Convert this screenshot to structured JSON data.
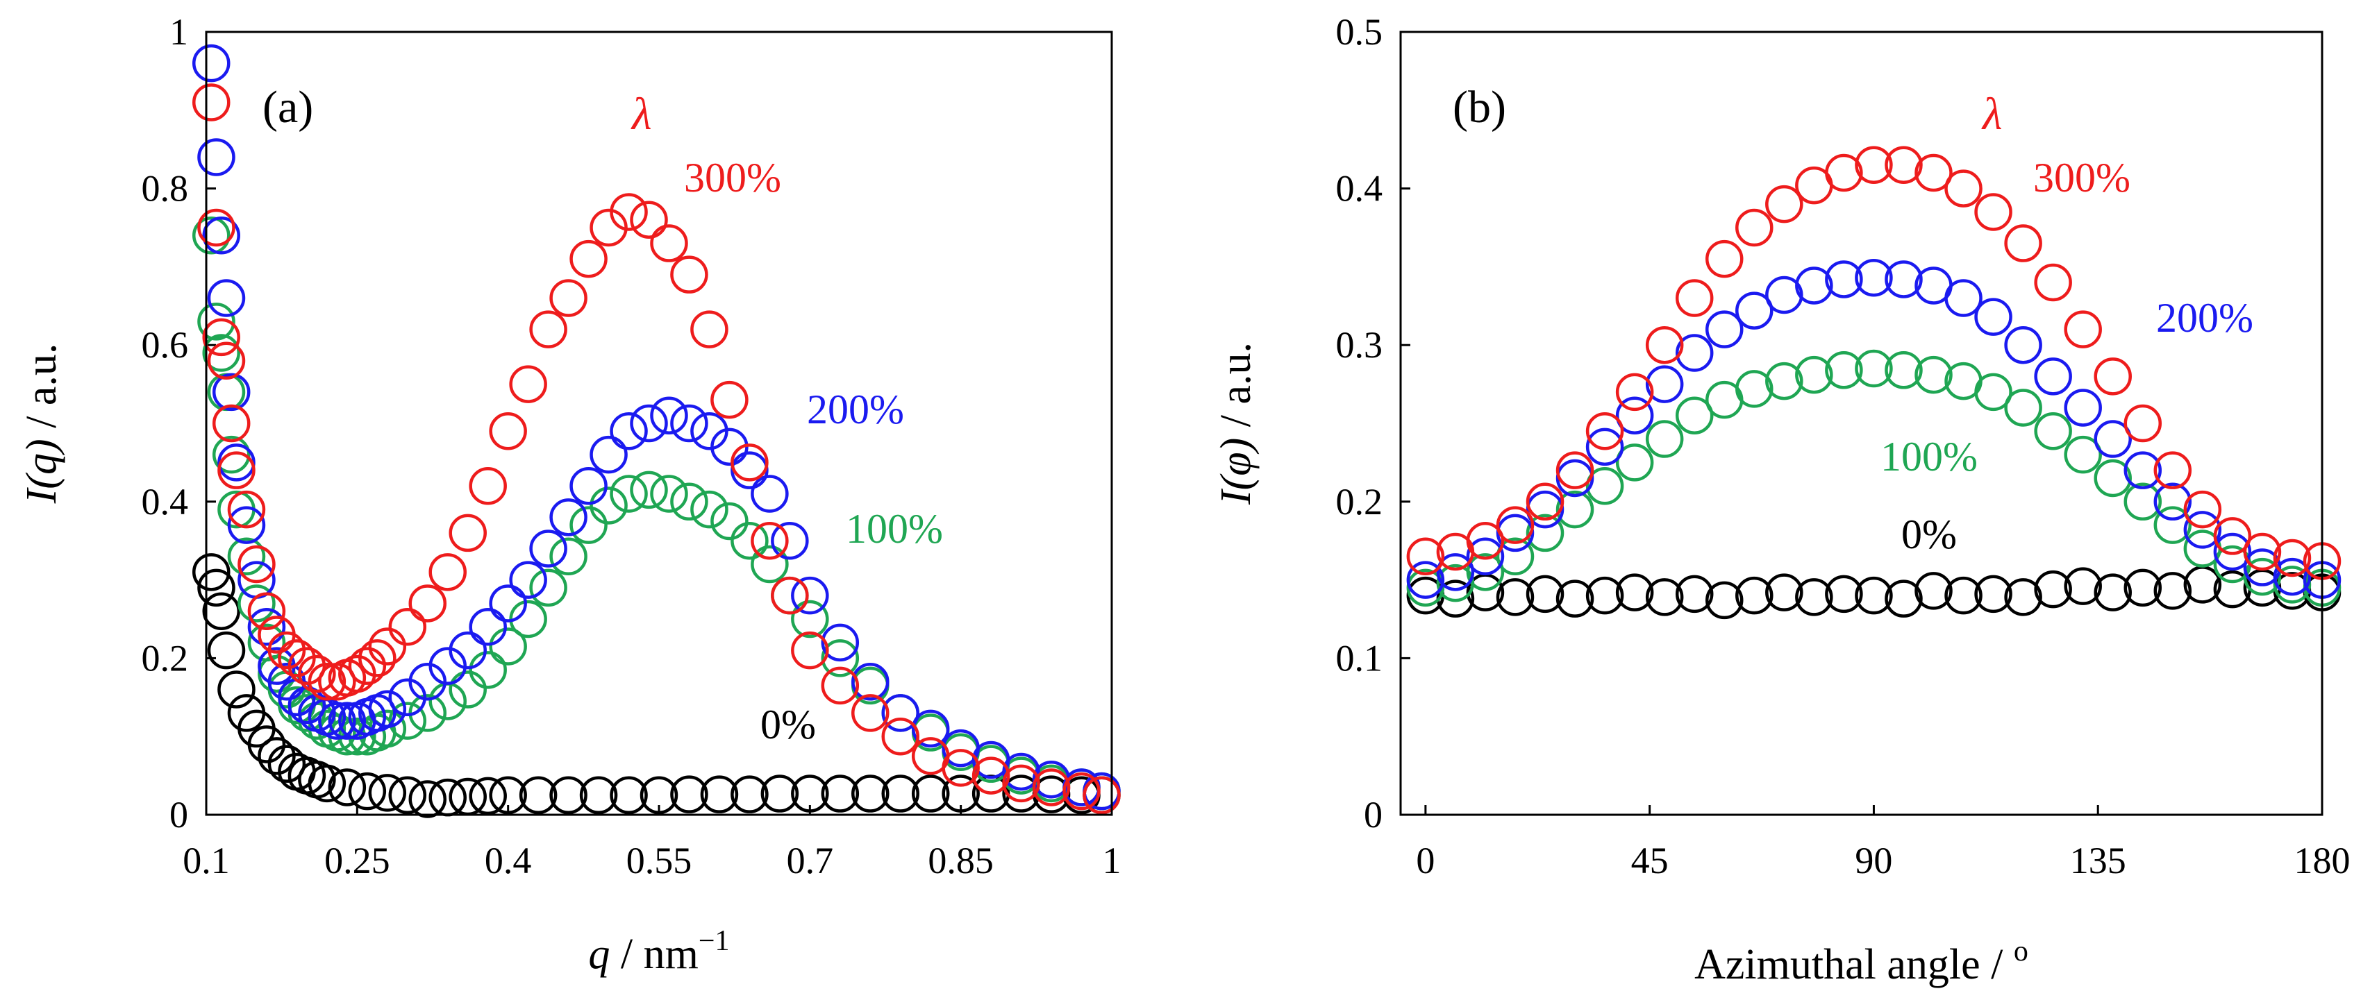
{
  "chart_data": [
    {
      "type": "scatter",
      "panel_label": "(a)",
      "xlabel_italic": "q",
      "xlabel_rest": " / nm",
      "xlabel_sup": "−1",
      "ylabel_italic": "I(q)",
      "ylabel_rest": " / a.u.",
      "xlim": [
        0.1,
        1.0
      ],
      "ylim": [
        0,
        1.0
      ],
      "xticks": [
        0.1,
        0.25,
        0.4,
        0.55,
        0.7,
        0.85,
        1.0
      ],
      "xtick_labels": [
        "0.1",
        "0.25",
        "0.4",
        "0.55",
        "0.7",
        "0.85",
        "1"
      ],
      "yticks": [
        0,
        0.2,
        0.4,
        0.6,
        0.8,
        1.0
      ],
      "ytick_labels": [
        "0",
        "0.2",
        "0.4",
        "0.6",
        "0.8",
        "1"
      ],
      "annotation": "λ",
      "series": [
        {
          "name": "0%",
          "color": "#000000",
          "x": [
            0.105,
            0.11,
            0.115,
            0.12,
            0.13,
            0.14,
            0.15,
            0.16,
            0.17,
            0.18,
            0.19,
            0.2,
            0.21,
            0.22,
            0.24,
            0.26,
            0.28,
            0.3,
            0.32,
            0.34,
            0.36,
            0.38,
            0.4,
            0.43,
            0.46,
            0.49,
            0.52,
            0.55,
            0.58,
            0.61,
            0.64,
            0.67,
            0.7,
            0.73,
            0.76,
            0.79,
            0.82,
            0.85,
            0.88,
            0.91,
            0.94,
            0.97,
            0.99
          ],
          "y": [
            0.31,
            0.29,
            0.26,
            0.21,
            0.16,
            0.13,
            0.11,
            0.09,
            0.075,
            0.065,
            0.055,
            0.05,
            0.045,
            0.04,
            0.035,
            0.03,
            0.028,
            0.025,
            0.02,
            0.022,
            0.023,
            0.024,
            0.025,
            0.025,
            0.025,
            0.025,
            0.025,
            0.025,
            0.026,
            0.026,
            0.026,
            0.027,
            0.027,
            0.027,
            0.027,
            0.027,
            0.027,
            0.027,
            0.027,
            0.027,
            0.026,
            0.025,
            0.025
          ]
        },
        {
          "name": "100%",
          "color": "#1fa653",
          "x": [
            0.105,
            0.11,
            0.115,
            0.12,
            0.125,
            0.13,
            0.14,
            0.15,
            0.16,
            0.17,
            0.18,
            0.19,
            0.2,
            0.21,
            0.22,
            0.23,
            0.24,
            0.25,
            0.26,
            0.27,
            0.28,
            0.3,
            0.32,
            0.34,
            0.36,
            0.38,
            0.4,
            0.42,
            0.44,
            0.46,
            0.48,
            0.5,
            0.52,
            0.54,
            0.56,
            0.58,
            0.6,
            0.62,
            0.64,
            0.66,
            0.68,
            0.7,
            0.73,
            0.76,
            0.79,
            0.82,
            0.85,
            0.88,
            0.91,
            0.94,
            0.97,
            0.99
          ],
          "y": [
            0.74,
            0.63,
            0.59,
            0.54,
            0.46,
            0.39,
            0.33,
            0.27,
            0.22,
            0.18,
            0.16,
            0.14,
            0.13,
            0.12,
            0.11,
            0.105,
            0.1,
            0.1,
            0.1,
            0.105,
            0.11,
            0.12,
            0.13,
            0.145,
            0.16,
            0.185,
            0.215,
            0.25,
            0.29,
            0.33,
            0.37,
            0.395,
            0.41,
            0.415,
            0.41,
            0.4,
            0.39,
            0.375,
            0.35,
            0.32,
            0.28,
            0.25,
            0.2,
            0.165,
            0.13,
            0.105,
            0.08,
            0.065,
            0.05,
            0.04,
            0.035,
            0.03
          ]
        },
        {
          "name": "200%",
          "color": "#1a1af0",
          "x": [
            0.105,
            0.11,
            0.115,
            0.12,
            0.125,
            0.13,
            0.14,
            0.15,
            0.16,
            0.17,
            0.18,
            0.19,
            0.2,
            0.21,
            0.22,
            0.23,
            0.24,
            0.25,
            0.26,
            0.27,
            0.28,
            0.3,
            0.32,
            0.34,
            0.36,
            0.38,
            0.4,
            0.42,
            0.44,
            0.46,
            0.48,
            0.5,
            0.52,
            0.54,
            0.56,
            0.58,
            0.6,
            0.62,
            0.64,
            0.66,
            0.68,
            0.7,
            0.73,
            0.76,
            0.79,
            0.82,
            0.85,
            0.88,
            0.91,
            0.94,
            0.97,
            0.99
          ],
          "y": [
            0.96,
            0.84,
            0.74,
            0.66,
            0.54,
            0.45,
            0.37,
            0.3,
            0.24,
            0.19,
            0.17,
            0.15,
            0.14,
            0.13,
            0.125,
            0.12,
            0.12,
            0.12,
            0.125,
            0.13,
            0.135,
            0.15,
            0.17,
            0.19,
            0.21,
            0.24,
            0.27,
            0.3,
            0.34,
            0.38,
            0.42,
            0.46,
            0.49,
            0.5,
            0.51,
            0.5,
            0.49,
            0.47,
            0.44,
            0.41,
            0.35,
            0.28,
            0.22,
            0.17,
            0.13,
            0.11,
            0.085,
            0.07,
            0.055,
            0.045,
            0.035,
            0.03
          ]
        },
        {
          "name": "300%",
          "color": "#ee1c1c",
          "x": [
            0.105,
            0.11,
            0.115,
            0.12,
            0.125,
            0.13,
            0.14,
            0.15,
            0.16,
            0.17,
            0.18,
            0.19,
            0.2,
            0.21,
            0.22,
            0.23,
            0.24,
            0.25,
            0.26,
            0.27,
            0.28,
            0.3,
            0.32,
            0.34,
            0.36,
            0.38,
            0.4,
            0.42,
            0.44,
            0.46,
            0.48,
            0.5,
            0.52,
            0.54,
            0.56,
            0.58,
            0.6,
            0.62,
            0.64,
            0.66,
            0.68,
            0.7,
            0.73,
            0.76,
            0.79,
            0.82,
            0.85,
            0.88,
            0.91,
            0.94,
            0.97,
            0.99
          ],
          "y": [
            0.91,
            0.75,
            0.61,
            0.58,
            0.5,
            0.44,
            0.39,
            0.32,
            0.26,
            0.23,
            0.21,
            0.2,
            0.19,
            0.18,
            0.17,
            0.17,
            0.175,
            0.18,
            0.19,
            0.2,
            0.215,
            0.24,
            0.27,
            0.31,
            0.36,
            0.42,
            0.49,
            0.55,
            0.62,
            0.66,
            0.71,
            0.75,
            0.77,
            0.76,
            0.73,
            0.69,
            0.62,
            0.53,
            0.45,
            0.35,
            0.28,
            0.21,
            0.165,
            0.13,
            0.1,
            0.075,
            0.06,
            0.05,
            0.04,
            0.035,
            0.03,
            0.025
          ]
        }
      ]
    },
    {
      "type": "scatter",
      "panel_label": "(b)",
      "xlabel": "Azimuthal angle / ",
      "xlabel_sup": "o",
      "ylabel_italic": "I(φ)",
      "ylabel_rest": " / a.u.",
      "xlim": [
        -5,
        180
      ],
      "ylim": [
        0,
        0.5
      ],
      "xticks": [
        0,
        45,
        90,
        135,
        180
      ],
      "xtick_labels": [
        "0",
        "45",
        "90",
        "135",
        "180"
      ],
      "yticks": [
        0,
        0.1,
        0.2,
        0.3,
        0.4,
        0.5
      ],
      "ytick_labels": [
        "0",
        "0.1",
        "0.2",
        "0.3",
        "0.4",
        "0.5"
      ],
      "annotation": "λ",
      "series": [
        {
          "name": "0%",
          "color": "#000000",
          "x": [
            0,
            6,
            12,
            18,
            24,
            30,
            36,
            42,
            48,
            54,
            60,
            66,
            72,
            78,
            84,
            90,
            96,
            102,
            108,
            114,
            120,
            126,
            132,
            138,
            144,
            150,
            156,
            162,
            168,
            174,
            180
          ],
          "y": [
            0.14,
            0.138,
            0.142,
            0.139,
            0.141,
            0.138,
            0.14,
            0.142,
            0.139,
            0.141,
            0.137,
            0.14,
            0.142,
            0.139,
            0.141,
            0.14,
            0.138,
            0.143,
            0.14,
            0.141,
            0.139,
            0.144,
            0.146,
            0.142,
            0.145,
            0.143,
            0.147,
            0.144,
            0.145,
            0.143,
            0.142
          ]
        },
        {
          "name": "100%",
          "color": "#1fa653",
          "x": [
            0,
            6,
            12,
            18,
            24,
            30,
            36,
            42,
            48,
            54,
            60,
            66,
            72,
            78,
            84,
            90,
            96,
            102,
            108,
            114,
            120,
            126,
            132,
            138,
            144,
            150,
            156,
            162,
            168,
            174,
            180
          ],
          "y": [
            0.145,
            0.148,
            0.155,
            0.165,
            0.18,
            0.195,
            0.21,
            0.225,
            0.24,
            0.255,
            0.265,
            0.272,
            0.277,
            0.281,
            0.284,
            0.285,
            0.284,
            0.281,
            0.277,
            0.27,
            0.26,
            0.245,
            0.23,
            0.215,
            0.2,
            0.185,
            0.17,
            0.16,
            0.152,
            0.147,
            0.145
          ]
        },
        {
          "name": "200%",
          "color": "#1a1af0",
          "x": [
            0,
            6,
            12,
            18,
            24,
            30,
            36,
            42,
            48,
            54,
            60,
            66,
            72,
            78,
            84,
            90,
            96,
            102,
            108,
            114,
            120,
            126,
            132,
            138,
            144,
            150,
            156,
            162,
            168,
            174,
            180
          ],
          "y": [
            0.15,
            0.155,
            0.165,
            0.18,
            0.195,
            0.215,
            0.235,
            0.255,
            0.275,
            0.295,
            0.31,
            0.322,
            0.332,
            0.338,
            0.342,
            0.343,
            0.342,
            0.338,
            0.33,
            0.318,
            0.3,
            0.28,
            0.26,
            0.24,
            0.22,
            0.2,
            0.182,
            0.168,
            0.158,
            0.152,
            0.15
          ]
        },
        {
          "name": "300%",
          "color": "#ee1c1c",
          "x": [
            0,
            6,
            12,
            18,
            24,
            30,
            36,
            42,
            48,
            54,
            60,
            66,
            72,
            78,
            84,
            90,
            96,
            102,
            108,
            114,
            120,
            126,
            132,
            138,
            144,
            150,
            156,
            162,
            168,
            174,
            180
          ],
          "y": [
            0.165,
            0.168,
            0.175,
            0.185,
            0.2,
            0.22,
            0.245,
            0.27,
            0.3,
            0.33,
            0.355,
            0.375,
            0.39,
            0.402,
            0.41,
            0.415,
            0.415,
            0.41,
            0.4,
            0.385,
            0.365,
            0.34,
            0.31,
            0.28,
            0.25,
            0.22,
            0.195,
            0.178,
            0.168,
            0.164,
            0.162
          ]
        }
      ]
    }
  ]
}
